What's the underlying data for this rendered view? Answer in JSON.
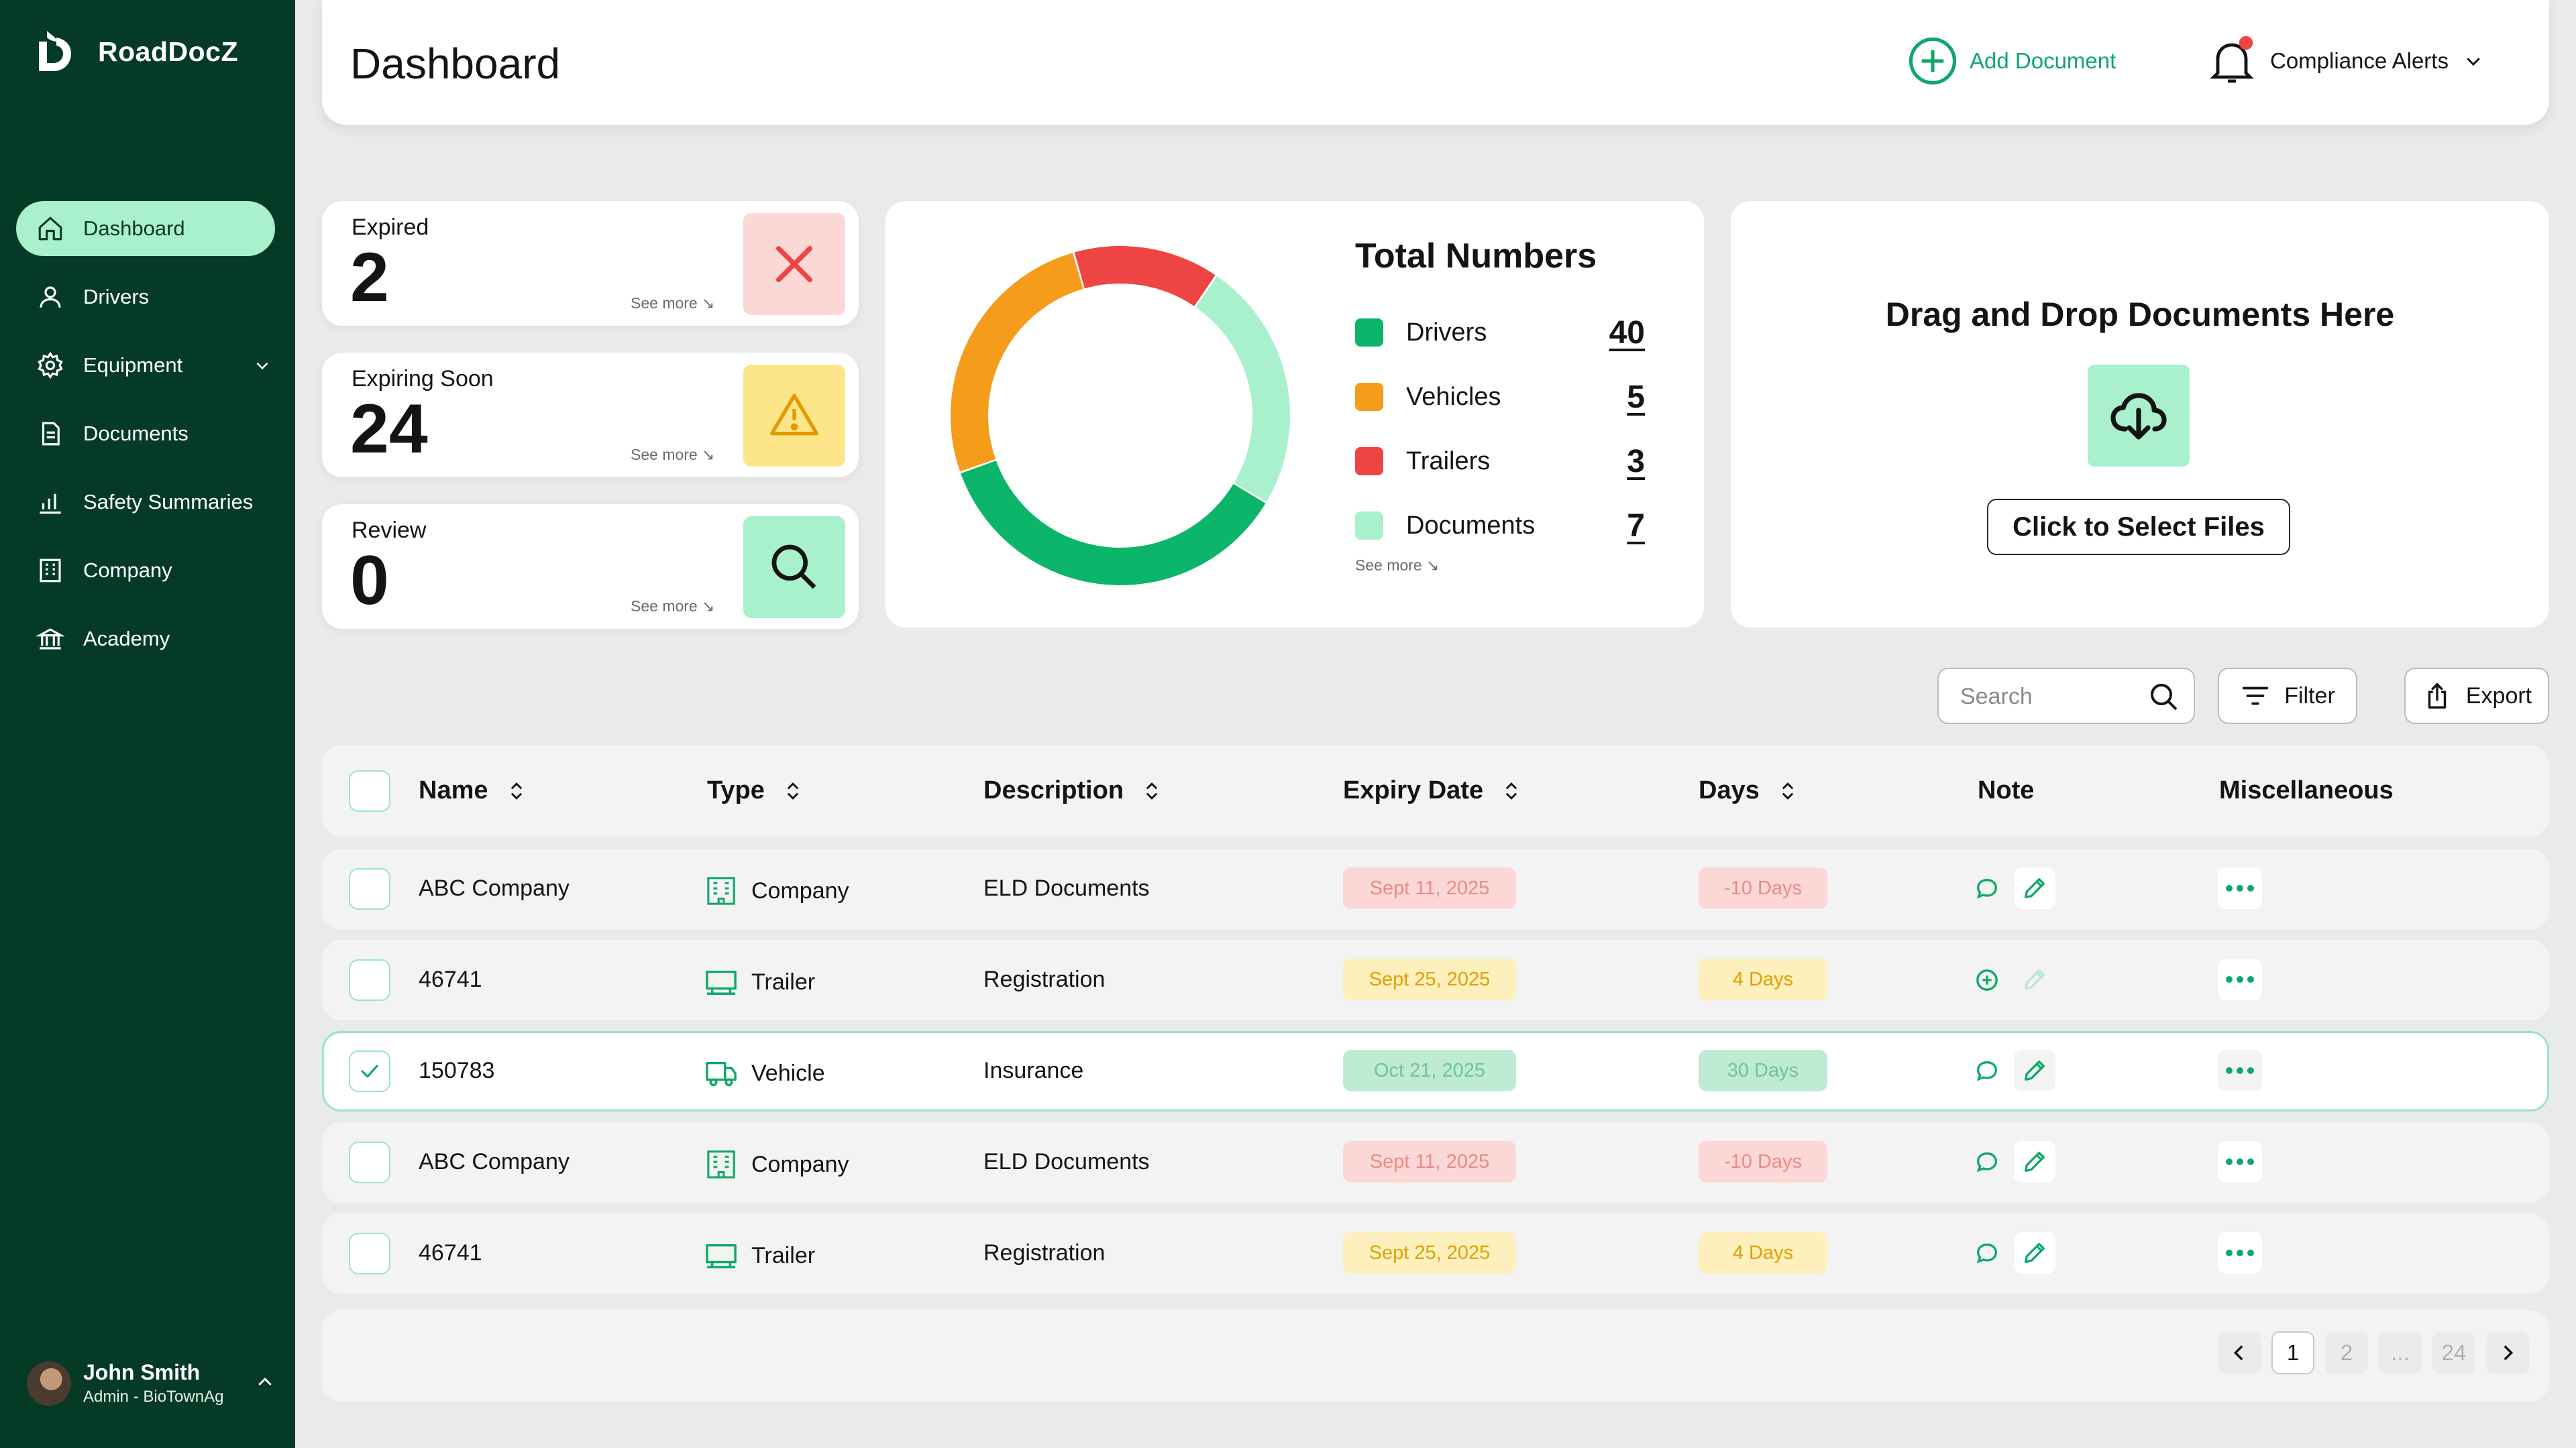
{
  "app": {
    "name": "RoadDocZ"
  },
  "colors": {
    "sidebar": "#053b26",
    "accent": "#0fa86a",
    "active_nav": "#a9f0cc",
    "orange": "#f59c1a",
    "red": "#ef4444",
    "mint": "#a9f0cc"
  },
  "sidebar": {
    "items": [
      {
        "label": "Dashboard",
        "icon": "home-icon"
      },
      {
        "label": "Drivers",
        "icon": "user-icon"
      },
      {
        "label": "Equipment",
        "icon": "gear-icon"
      },
      {
        "label": "Documents",
        "icon": "document-icon"
      },
      {
        "label": "Safety Summaries",
        "icon": "bar-chart-icon"
      },
      {
        "label": "Company",
        "icon": "building-icon"
      },
      {
        "label": "Academy",
        "icon": "academy-icon"
      }
    ],
    "user": {
      "name": "John Smith",
      "role": "Admin - BioTownAg"
    }
  },
  "header": {
    "title": "Dashboard",
    "add_document": "Add Document",
    "alerts": "Compliance Alerts"
  },
  "stats": [
    {
      "label": "Expired",
      "value": "2",
      "see_more": "See more ↘",
      "icon": "close-icon"
    },
    {
      "label": "Expiring Soon",
      "value": "24",
      "see_more": "See more ↘",
      "icon": "warning-icon"
    },
    {
      "label": "Review",
      "value": "0",
      "see_more": "See more ↘",
      "icon": "search-icon"
    }
  ],
  "totals": {
    "title": "Total Numbers",
    "see_more": "See more ↘",
    "items": [
      {
        "label": "Drivers",
        "value": "40"
      },
      {
        "label": "Vehicles",
        "value": "5"
      },
      {
        "label": "Trailers",
        "value": "3"
      },
      {
        "label": "Documents",
        "value": "7"
      }
    ]
  },
  "donut": {
    "segments": [
      {
        "name": "Trailers",
        "color": "#ef4444",
        "fraction": 0.14
      },
      {
        "name": "Documents",
        "color": "#a9f0cc",
        "fraction": 0.24
      },
      {
        "name": "Drivers",
        "color": "#0bb56a",
        "fraction": 0.36
      },
      {
        "name": "Vehicles",
        "color": "#f59c1a",
        "fraction": 0.26
      }
    ]
  },
  "dropzone": {
    "title": "Drag and Drop Documents Here",
    "button": "Click to Select Files"
  },
  "toolbar": {
    "search_placeholder": "Search",
    "filter": "Filter",
    "export": "Export"
  },
  "table": {
    "columns": [
      "Name",
      "Type",
      "Description",
      "Expiry Date",
      "Days",
      "Note",
      "Miscellaneous"
    ],
    "rows": [
      {
        "name": "ABC Company",
        "type": "Company",
        "description": "ELD Documents",
        "expiry": "Sept 11, 2025",
        "days": "-10 Days",
        "status": "red",
        "checked": false,
        "note": "comment"
      },
      {
        "name": "46741",
        "type": "Trailer",
        "description": "Registration",
        "expiry": "Sept 25, 2025",
        "days": "4 Days",
        "status": "yellow",
        "checked": false,
        "note": "add"
      },
      {
        "name": "150783",
        "type": "Vehicle",
        "description": "Insurance",
        "expiry": "Oct 21, 2025",
        "days": "30 Days",
        "status": "green",
        "checked": true,
        "note": "comment"
      },
      {
        "name": "ABC Company",
        "type": "Company",
        "description": "ELD Documents",
        "expiry": "Sept 11, 2025",
        "days": "-10 Days",
        "status": "red",
        "checked": false,
        "note": "comment"
      },
      {
        "name": "46741",
        "type": "Trailer",
        "description": "Registration",
        "expiry": "Sept 25, 2025",
        "days": "4 Days",
        "status": "yellow",
        "checked": false,
        "note": "comment"
      }
    ]
  },
  "pagination": {
    "pages": [
      "1",
      "2",
      "...",
      "24"
    ],
    "current": "1"
  }
}
